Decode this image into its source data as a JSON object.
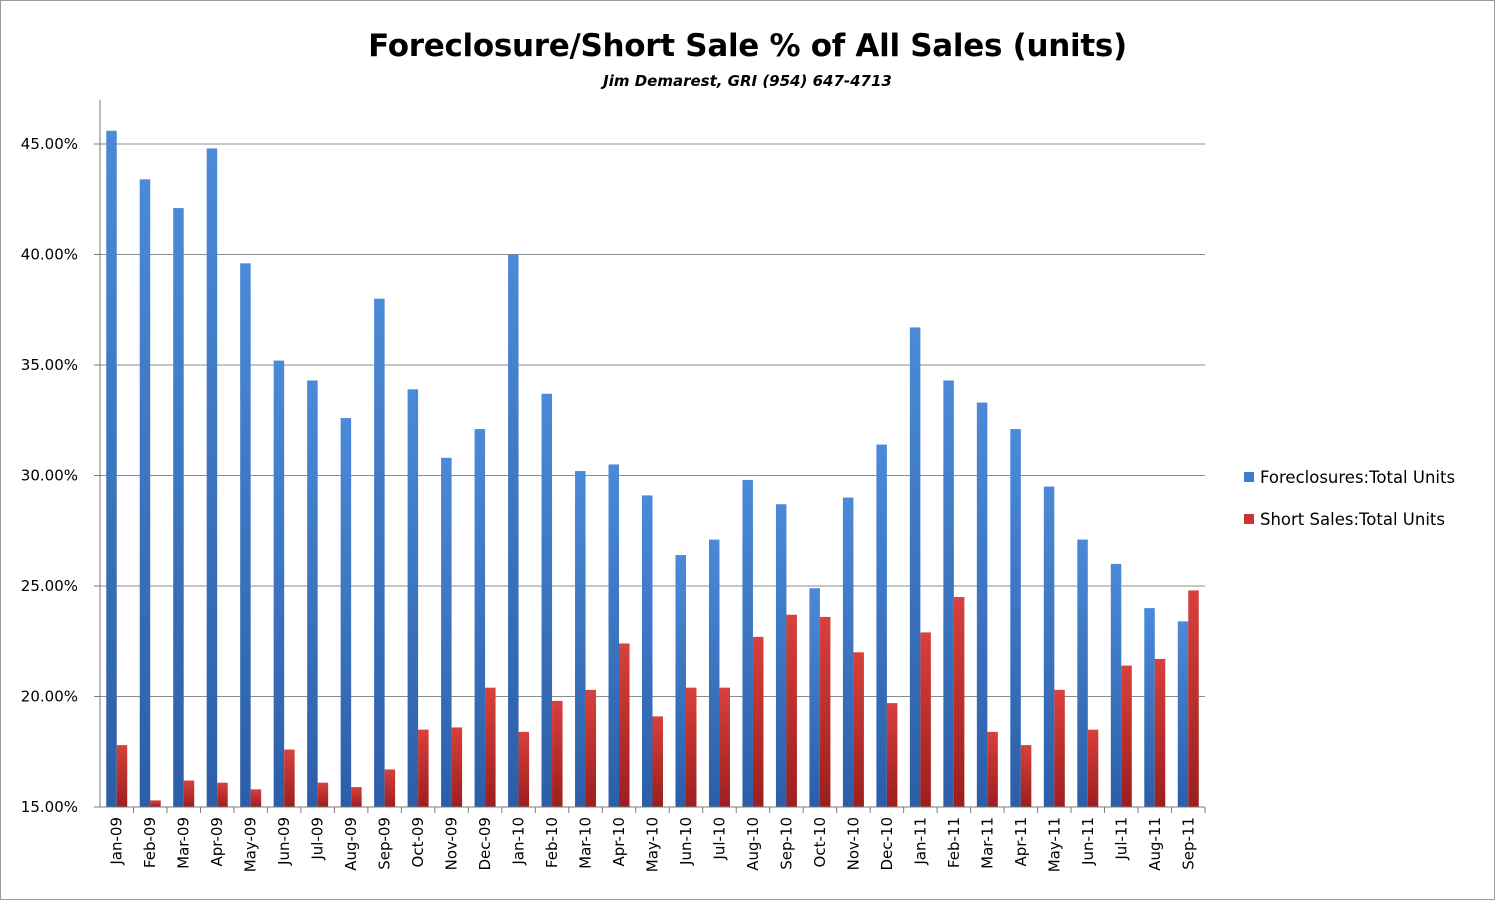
{
  "chart_data": {
    "type": "bar",
    "title": "Foreclosure/Short Sale % of All Sales (units)",
    "subtitle": "Jim Demarest, GRI  (954) 647-4713",
    "xlabel": "",
    "ylabel": "",
    "ylim": [
      15,
      46
    ],
    "yticks": [
      15,
      20,
      25,
      30,
      35,
      40,
      45
    ],
    "ytick_labels": [
      "15.00%",
      "20.00%",
      "25.00%",
      "30.00%",
      "35.00%",
      "40.00%",
      "45.00%"
    ],
    "grid": true,
    "legend_position": "right",
    "categories": [
      "Jan-09",
      "Feb-09",
      "Mar-09",
      "Apr-09",
      "May-09",
      "Jun-09",
      "Jul-09",
      "Aug-09",
      "Sep-09",
      "Oct-09",
      "Nov-09",
      "Dec-09",
      "Jan-10",
      "Feb-10",
      "Mar-10",
      "Apr-10",
      "May-10",
      "Jun-10",
      "Jul-10",
      "Aug-10",
      "Sep-10",
      "Oct-10",
      "Nov-10",
      "Dec-10",
      "Jan-11",
      "Feb-11",
      "Mar-11",
      "Apr-11",
      "May-11",
      "Jun-11",
      "Jul-11",
      "Aug-11",
      "Sep-11"
    ],
    "series": [
      {
        "name": "Foreclosures:Total Units",
        "color": "#3f7ccc",
        "values": [
          45.6,
          43.4,
          42.1,
          44.8,
          39.6,
          35.2,
          34.3,
          32.6,
          38.0,
          33.9,
          30.8,
          32.1,
          40.0,
          33.7,
          30.2,
          30.5,
          29.1,
          26.4,
          27.1,
          29.8,
          28.7,
          24.9,
          29.0,
          31.4,
          36.7,
          34.3,
          33.3,
          32.1,
          29.5,
          27.1,
          26.0,
          24.0,
          23.4
        ]
      },
      {
        "name": "Short Sales:Total Units",
        "color": "#c93533",
        "values": [
          17.8,
          15.3,
          16.2,
          16.1,
          15.8,
          17.6,
          16.1,
          15.9,
          16.7,
          18.5,
          18.6,
          20.4,
          18.4,
          19.8,
          20.3,
          22.4,
          19.1,
          20.4,
          20.4,
          22.7,
          23.7,
          23.6,
          22.0,
          19.7,
          22.9,
          24.5,
          18.4,
          17.8,
          20.3,
          18.5,
          21.4,
          21.7,
          24.8
        ]
      }
    ]
  }
}
